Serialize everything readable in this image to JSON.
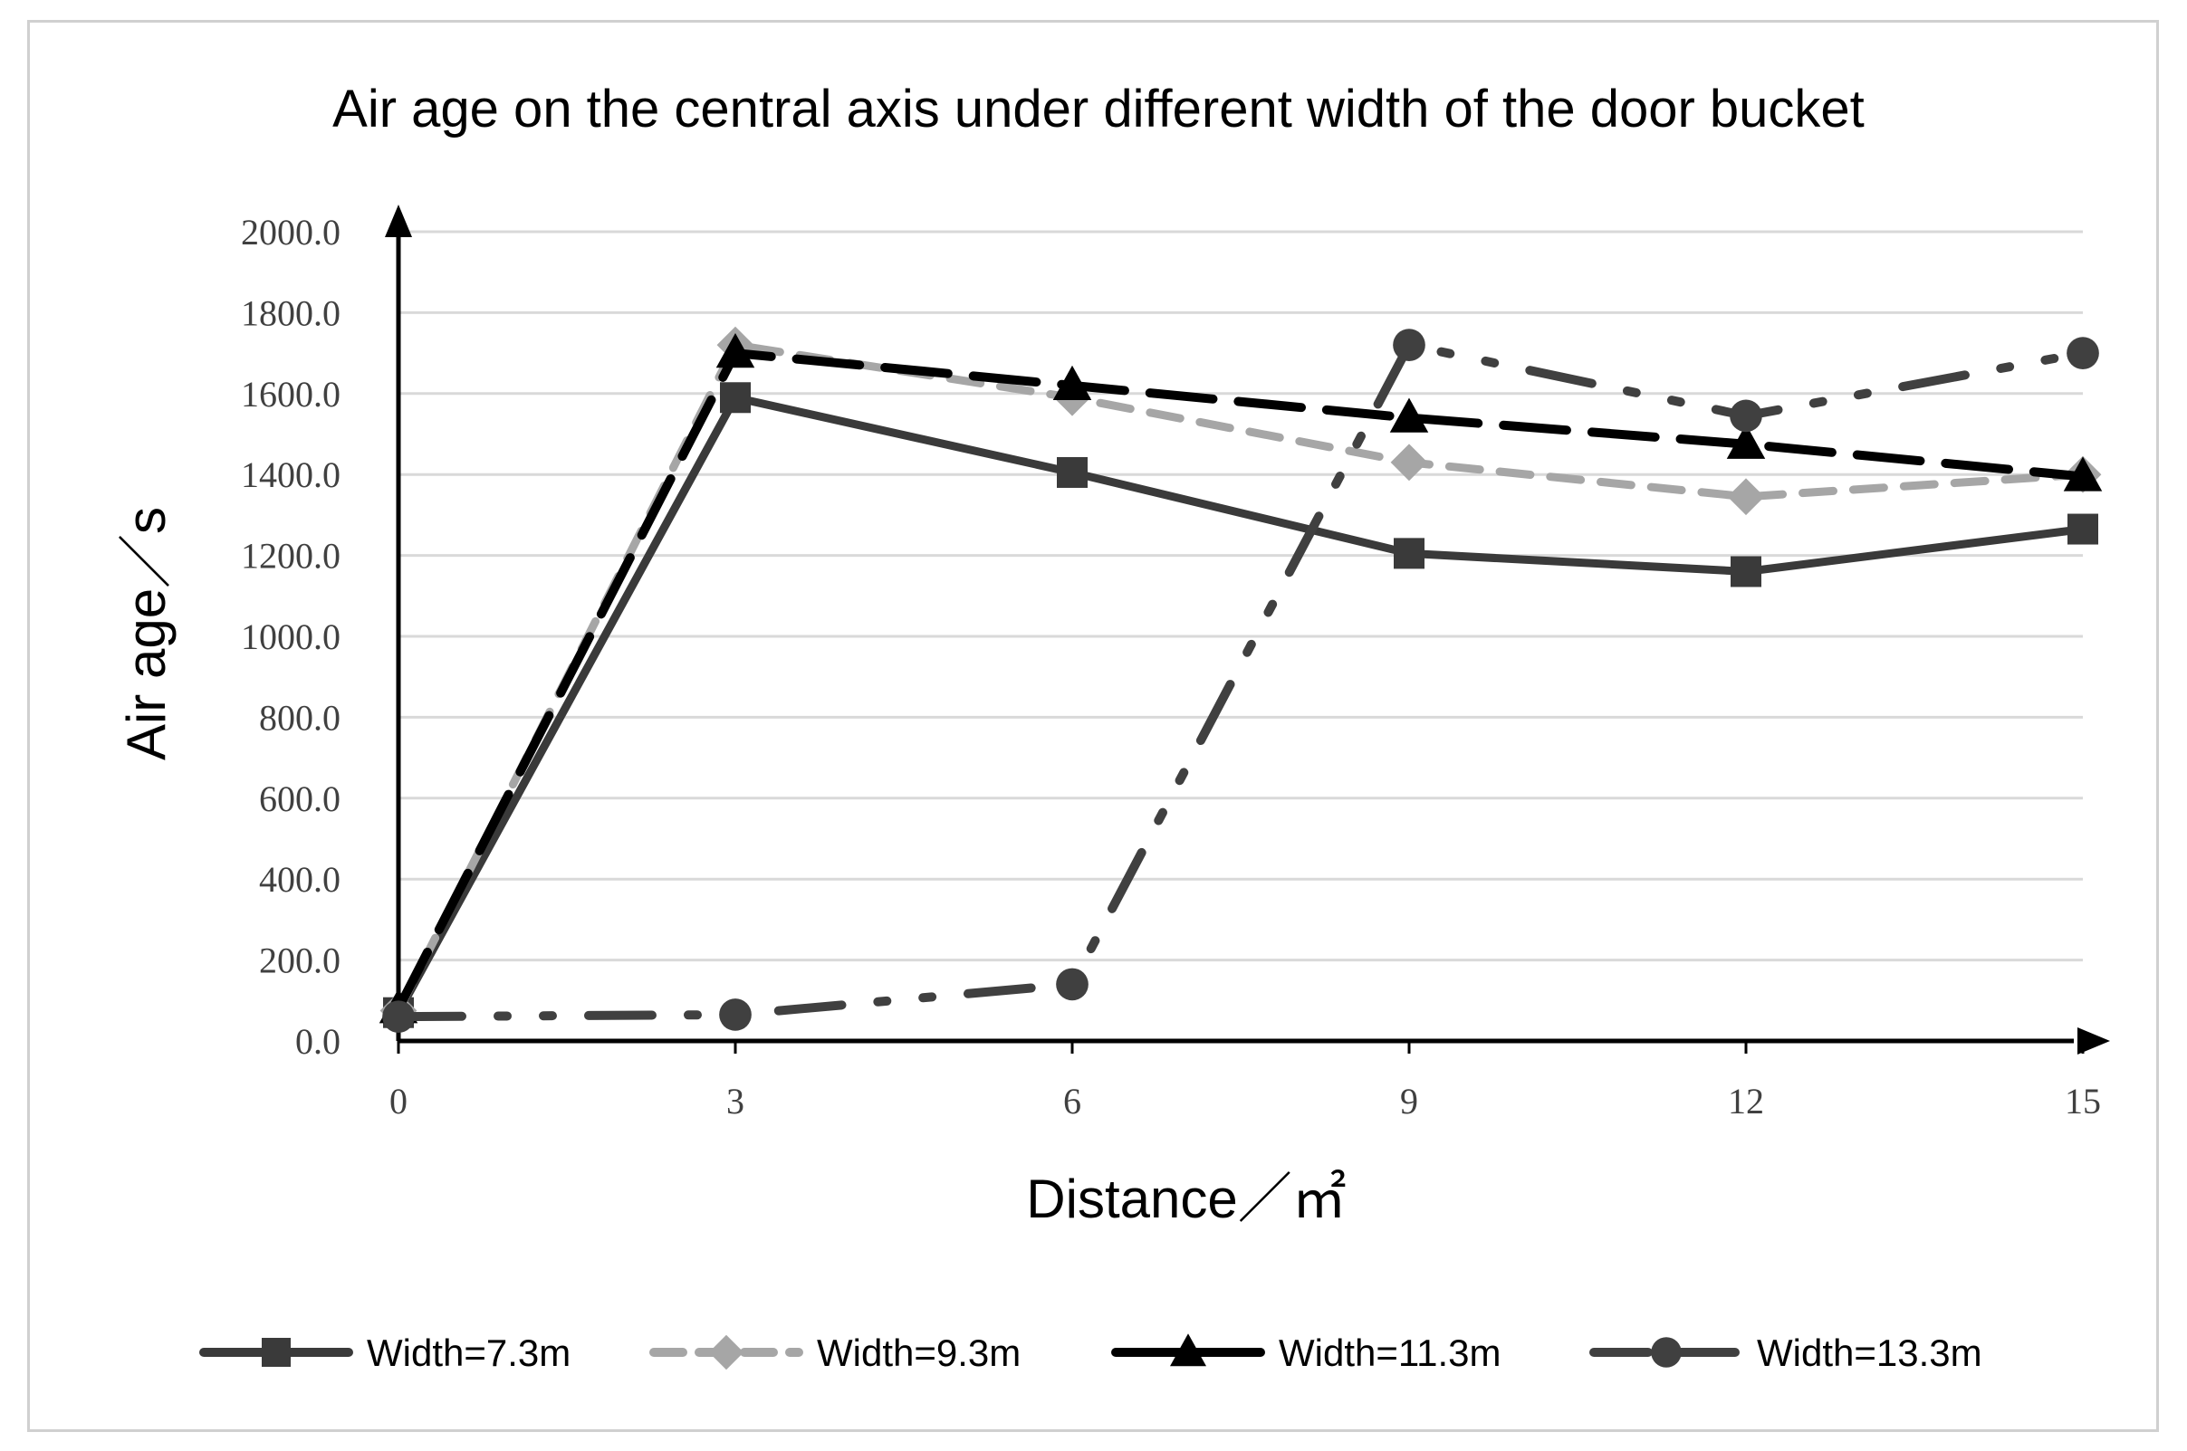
{
  "chart_data": {
    "type": "line",
    "title": "Air age on the central axis under different width of the door bucket",
    "xlabel": "Distance／㎡",
    "ylabel": "Air age／s",
    "x": [
      0,
      3,
      6,
      9,
      12,
      15
    ],
    "x_tick_labels": [
      "0",
      "3",
      "6",
      "9",
      "12",
      "15"
    ],
    "xlim": [
      0,
      15
    ],
    "ylim": [
      0,
      2000
    ],
    "y_ticks": [
      0,
      200,
      400,
      600,
      800,
      1000,
      1200,
      1400,
      1600,
      1800,
      2000
    ],
    "y_tick_labels": [
      "0.0",
      "200.0",
      "400.0",
      "600.0",
      "800.0",
      "1000.0",
      "1200.0",
      "1400.0",
      "1600.0",
      "1800.0",
      "2000.0"
    ],
    "grid": true,
    "legend_position": "bottom",
    "series": [
      {
        "name": "Width=7.3m",
        "values": [
          70,
          1590,
          1405,
          1205,
          1160,
          1265
        ],
        "color": "#3a3a3a",
        "marker": "square",
        "dash": "solid"
      },
      {
        "name": "Width=9.3m",
        "values": [
          75,
          1720,
          1590,
          1430,
          1345,
          1400
        ],
        "color": "#a6a6a6",
        "marker": "diamond",
        "dash": "dash"
      },
      {
        "name": "Width=11.3m",
        "values": [
          80,
          1700,
          1620,
          1540,
          1475,
          1395
        ],
        "color": "#000000",
        "marker": "triangle",
        "dash": "longdash"
      },
      {
        "name": "Width=13.3m",
        "values": [
          60,
          65,
          140,
          1720,
          1545,
          1700
        ],
        "color": "#404040",
        "marker": "circle",
        "dash": "dashdotdot"
      }
    ]
  }
}
